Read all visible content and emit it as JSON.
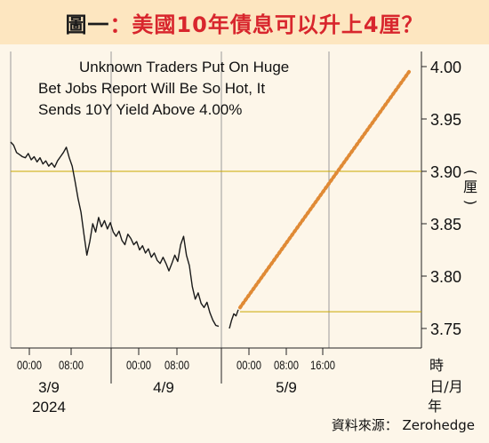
{
  "title": {
    "part1": "圖一",
    "part2": "：美國10年債息可以升上4厘？"
  },
  "source": "資料來源： Zerohedge",
  "chart_data": {
    "type": "line",
    "title": "圖一：美國10年債息可以升上4厘？",
    "subtitle": [
      "Unknown Traders Put On Huge",
      "Bet Jobs Report Will Be So Hot, It",
      "Sends 10Y Yield Above 4.00%"
    ],
    "ylabel": "(厘)",
    "xlabel": [
      "時",
      "日/月",
      "年"
    ],
    "ylim": [
      3.73,
      4.01
    ],
    "yticks": [
      "4.00",
      "3.95",
      "3.90",
      "3.85",
      "3.80",
      "3.75"
    ],
    "xtick_times": [
      "00:00",
      "08:00",
      "00:00",
      "08:00",
      "00:00",
      "08:00",
      "16:00"
    ],
    "date_labels": [
      "3/9",
      "4/9",
      "5/9"
    ],
    "year_label": "2024",
    "reference_levels": [
      3.9,
      3.766
    ],
    "series": [
      {
        "values": [
          3.928,
          3.925,
          3.918,
          3.916,
          3.914,
          3.913,
          3.917,
          3.911,
          3.914,
          3.909,
          3.913,
          3.907,
          3.91,
          3.905,
          3.908,
          3.904,
          3.91,
          3.914,
          3.918,
          3.923,
          3.913,
          3.905,
          3.89,
          3.874,
          3.861,
          3.84,
          3.82,
          3.833,
          3.85,
          3.842,
          3.856,
          3.847,
          3.853,
          3.845,
          3.851,
          3.842,
          3.838,
          3.843,
          3.834,
          3.83,
          3.84,
          3.836,
          3.83,
          3.833,
          3.825,
          3.829,
          3.822,
          3.826,
          3.818,
          3.822,
          3.815,
          3.812,
          3.818,
          3.812,
          3.805,
          3.812,
          3.82,
          3.814,
          3.83,
          3.838,
          3.82,
          3.81,
          3.79,
          3.778,
          3.784,
          3.774,
          3.77,
          3.775,
          3.765,
          3.758,
          3.753,
          3.752
        ]
      },
      {
        "values": [
          3.75,
          3.758,
          3.764,
          3.762,
          3.768
        ]
      },
      {
        "values": [
          3.77,
          3.995
        ]
      }
    ]
  }
}
